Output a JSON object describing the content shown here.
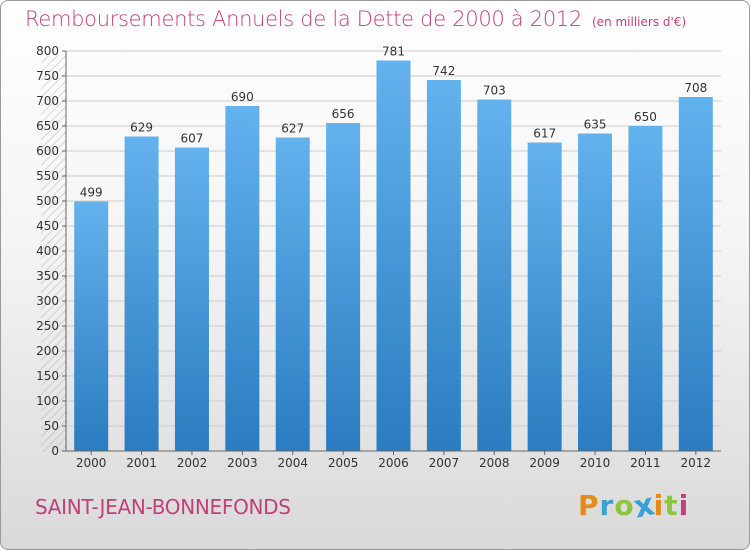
{
  "title": "Remboursements Annuels de la Dette de 2000 à 2012",
  "unit_note": "(en milliers d'€)",
  "commune": "SAINT-JEAN-BONNEFONDS",
  "brand": {
    "name": "Proxiti",
    "letters": [
      "P",
      "r",
      "o",
      "x",
      "i",
      "t",
      "i"
    ],
    "colors": [
      "#e8891e",
      "#3aa0d8",
      "#8cc63f",
      "#3aa0d8",
      "#e8891e",
      "#8cc63f",
      "#c0407a"
    ]
  },
  "colors": {
    "accent": "#c0407a",
    "bar_top": "#63b2ee",
    "bar_bottom": "#2b7cc0",
    "grid": "#cccccc"
  },
  "chart_data": {
    "type": "bar",
    "title": "Remboursements Annuels de la Dette de 2000 à 2012",
    "xlabel": "",
    "ylabel": "",
    "categories": [
      "2000",
      "2001",
      "2002",
      "2003",
      "2004",
      "2005",
      "2006",
      "2007",
      "2008",
      "2009",
      "2010",
      "2011",
      "2012"
    ],
    "values": [
      499,
      629,
      607,
      690,
      627,
      656,
      781,
      742,
      703,
      617,
      635,
      650,
      708
    ],
    "ylim": [
      0,
      800
    ],
    "yticks": [
      0,
      50,
      100,
      150,
      200,
      250,
      300,
      350,
      400,
      450,
      500,
      550,
      600,
      650,
      700,
      750,
      800
    ],
    "grid": true
  }
}
